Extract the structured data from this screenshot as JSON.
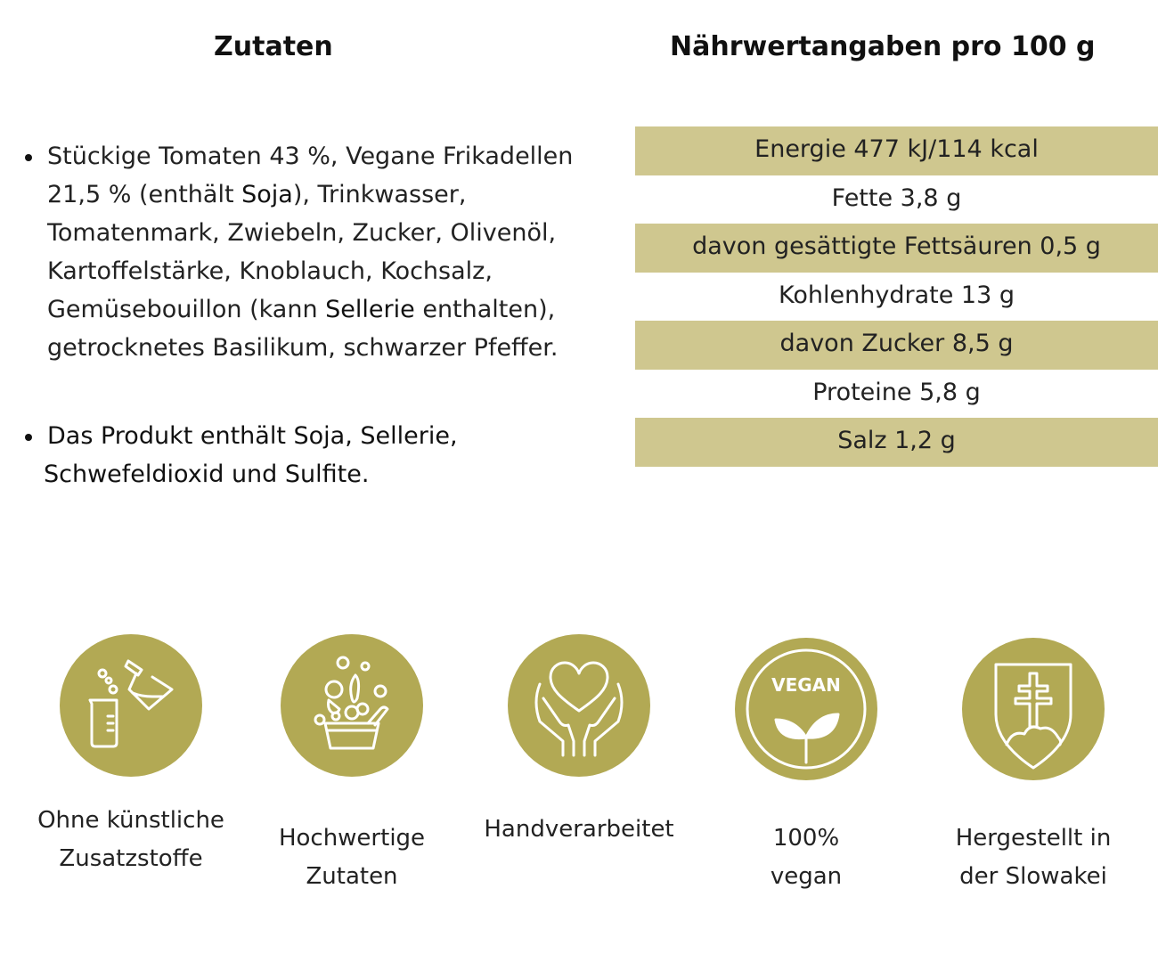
{
  "ingredients_section": {
    "title": "Zutaten",
    "item1": {
      "part1": "Stückige Tomaten 43 %, Vegane Frikadellen 21,5 % (enthält ",
      "allergen1": "Soja",
      "part2": "), Trinkwasser, Tomatenmark, Zwiebeln, Zucker, Olivenöl, Kartoffelstärke, Knoblauch, Kochsalz, Gemüsebouillon (kann ",
      "allergen2": "Sellerie",
      "part3": " enthalten), getrocknetes Basilikum, schwarzer Pfeffer."
    },
    "item2": {
      "line1": "Das Produkt enthält Soja, Sellerie,",
      "line2": "Schwefeldioxid und Sulfite."
    }
  },
  "nutrition_section": {
    "title": "Nährwertangaben pro 100 g",
    "rows": [
      "Energie 477 kJ/114 kcal",
      "Fette 3,8 g",
      "davon gesättigte Fettsäuren 0,5 g",
      "Kohlenhydrate 13 g",
      "davon Zucker 8,5 g",
      "Proteine 5,8 g",
      "Salz 1,2 g"
    ]
  },
  "features": [
    {
      "icon": "lab-flask-icon",
      "line1": "Ohne künstliche",
      "line2": "Zusatzstoffe"
    },
    {
      "icon": "vegetables-bowl-icon",
      "line1": "Hochwertige",
      "line2": "Zutaten"
    },
    {
      "icon": "heart-hands-icon",
      "line1": "Handverarbeitet",
      "line2": ""
    },
    {
      "icon": "vegan-badge-icon",
      "line1": "100%",
      "line2": "vegan",
      "badge_text": "VEGAN"
    },
    {
      "icon": "slovak-coat-of-arms-icon",
      "line1": "Hergestellt in",
      "line2": "der Slowakei"
    }
  ],
  "colors": {
    "accent": "#b2a954",
    "table_shade": "#cfc78f",
    "text": "#222222"
  }
}
